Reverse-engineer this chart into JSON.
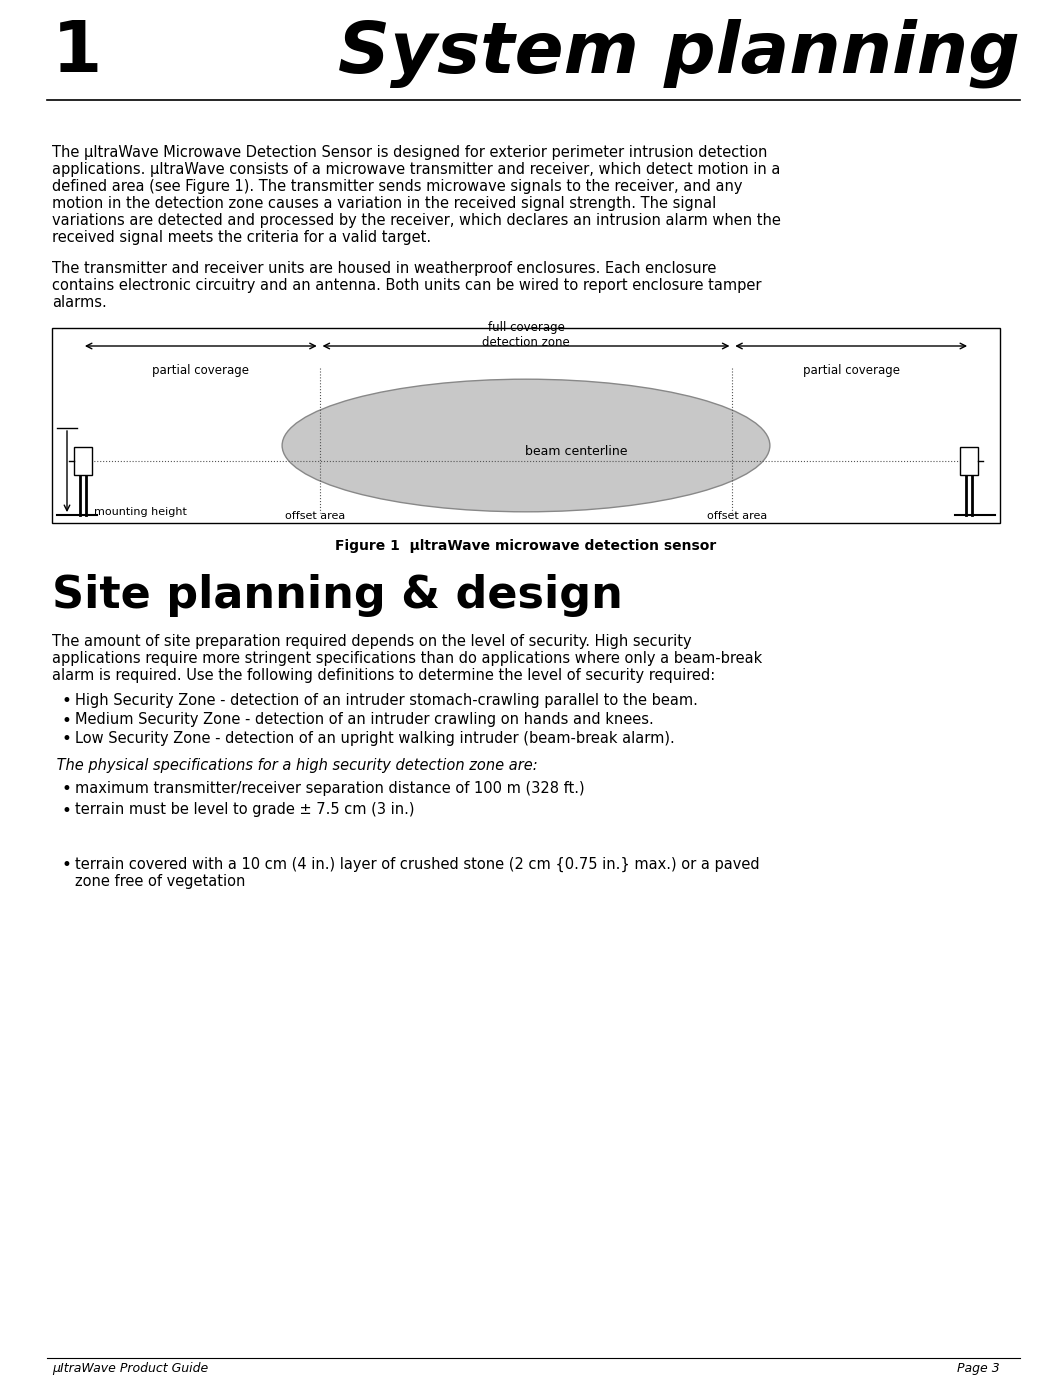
{
  "title_number": "1",
  "title_text": "System planning",
  "title_fontsize": 52,
  "title_number_fontsize": 52,
  "footer_left": "μItraWave Product Guide",
  "footer_right": "Page 3",
  "footer_fontsize": 9,
  "body_fontsize": 10.5,
  "paragraph1": "The μltraWave Microwave Detection Sensor is designed for exterior perimeter intrusion detection\napplications. μltraWave consists of a microwave transmitter and receiver, which detect motion in a\ndefined area (see Figure 1). The transmitter sends microwave signals to the receiver, and any\nmotion in the detection zone causes a variation in the received signal strength. The signal\nvariations are detected and processed by the receiver, which declares an intrusion alarm when the\nreceived signal meets the criteria for a valid target.",
  "paragraph2": "The transmitter and receiver units are housed in weatherproof enclosures. Each enclosure\ncontains electronic circuitry and an antenna. Both units can be wired to report enclosure tamper\nalarms.",
  "figure_caption": "Figure 1  μltraWave microwave detection sensor",
  "section2_title": "Site planning & design",
  "section2_fontsize": 32,
  "section2_para1": "The amount of site preparation required depends on the level of security. High security\napplications require more stringent specifications than do applications where only a beam-break\nalarm is required. Use the following definitions to determine the level of security required:",
  "bullet1": "High Security Zone - detection of an intruder stomach-crawling parallel to the beam.",
  "bullet2": "Medium Security Zone - detection of an intruder crawling on hands and knees.",
  "bullet3": "Low Security Zone - detection of an upright walking intruder (beam-break alarm).",
  "section2_para2": " The physical specifications for a high security detection zone are:",
  "bullet4": "maximum transmitter/receiver separation distance of 100 m (328 ft.)",
  "bullet5": "terrain must be level to grade ± 7.5 cm (3 in.)",
  "bullet6": "terrain covered with a 10 cm (4 in.) layer of crushed stone (2 cm {0.75 in.} max.) or a paved\nzone free of vegetation",
  "bg_color": "#ffffff",
  "text_color": "#000000",
  "link_color": "#0000cc",
  "diagram_bg": "#d3d3d3",
  "diagram_border": "#000000",
  "diagram_line_color": "#888888"
}
